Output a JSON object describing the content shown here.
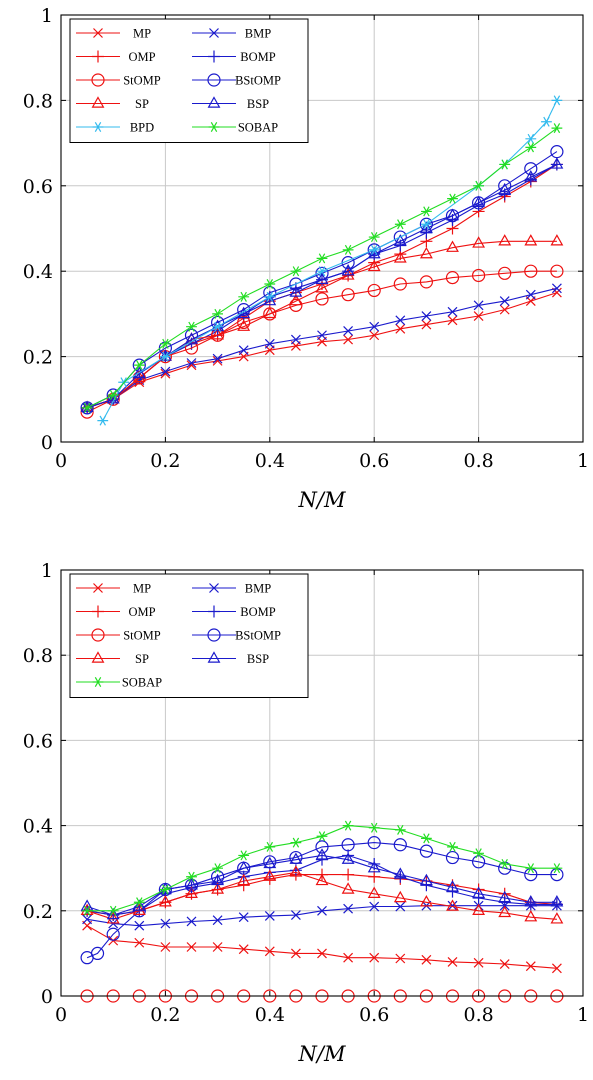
{
  "series_style": {
    "MP": {
      "color": "#ee1111",
      "marker": "x"
    },
    "OMP": {
      "color": "#ee1111",
      "marker": "+"
    },
    "StOMP": {
      "color": "#ee1111",
      "marker": "o"
    },
    "SP": {
      "color": "#ee1111",
      "marker": "tri"
    },
    "BMP": {
      "color": "#1a1acc",
      "marker": "x"
    },
    "BOMP": {
      "color": "#1a1acc",
      "marker": "+"
    },
    "BStOMP": {
      "color": "#1a1acc",
      "marker": "o"
    },
    "BSP": {
      "color": "#1a1acc",
      "marker": "tri"
    },
    "BPD": {
      "color": "#33bbee",
      "marker": "star"
    },
    "SOBAP": {
      "color": "#22dd22",
      "marker": "star"
    }
  },
  "chart_data": [
    {
      "type": "line",
      "title": "",
      "xlabel": "N/M",
      "ylabel": "",
      "xlim": [
        0,
        1
      ],
      "ylim": [
        0,
        1
      ],
      "xticks": [
        "0",
        "0.2",
        "0.4",
        "0.6",
        "0.8",
        "1"
      ],
      "yticks": [
        "0",
        "0.2",
        "0.4",
        "0.6",
        "0.8",
        "1"
      ],
      "grid": true,
      "legend_position": "top-left",
      "legend": [
        "MP",
        "BMP",
        "OMP",
        "BOMP",
        "StOMP",
        "BStOMP",
        "SP",
        "BSP",
        "BPD",
        "SOBAP"
      ],
      "x": [
        0.05,
        0.1,
        0.15,
        0.2,
        0.25,
        0.3,
        0.35,
        0.4,
        0.45,
        0.5,
        0.55,
        0.6,
        0.65,
        0.7,
        0.75,
        0.8,
        0.85,
        0.9,
        0.95
      ],
      "series": [
        {
          "name": "MP",
          "values": [
            0.08,
            0.1,
            0.14,
            0.16,
            0.18,
            0.19,
            0.2,
            0.215,
            0.225,
            0.235,
            0.24,
            0.25,
            0.265,
            0.275,
            0.285,
            0.295,
            0.31,
            0.33,
            0.35
          ]
        },
        {
          "name": "BMP",
          "values": [
            0.08,
            0.1,
            0.145,
            0.165,
            0.185,
            0.195,
            0.215,
            0.23,
            0.24,
            0.25,
            0.26,
            0.27,
            0.285,
            0.295,
            0.305,
            0.32,
            0.33,
            0.345,
            0.36
          ]
        },
        {
          "name": "OMP",
          "values": [
            0.08,
            0.1,
            0.15,
            0.2,
            0.23,
            0.25,
            0.29,
            0.33,
            0.35,
            0.37,
            0.39,
            0.42,
            0.44,
            0.47,
            0.5,
            0.54,
            0.575,
            0.61,
            0.65
          ]
        },
        {
          "name": "BOMP",
          "values": [
            0.08,
            0.1,
            0.15,
            0.2,
            0.23,
            0.26,
            0.3,
            0.34,
            0.36,
            0.38,
            0.4,
            0.44,
            0.46,
            0.49,
            0.52,
            0.555,
            0.58,
            0.615,
            0.65
          ]
        },
        {
          "name": "StOMP",
          "values": [
            0.07,
            0.1,
            0.15,
            0.2,
            0.22,
            0.25,
            0.28,
            0.3,
            0.32,
            0.335,
            0.345,
            0.355,
            0.37,
            0.375,
            0.385,
            0.39,
            0.395,
            0.4,
            0.4
          ]
        },
        {
          "name": "BStOMP",
          "values": [
            0.08,
            0.11,
            0.18,
            0.22,
            0.25,
            0.28,
            0.31,
            0.35,
            0.37,
            0.395,
            0.42,
            0.45,
            0.48,
            0.51,
            0.53,
            0.56,
            0.6,
            0.64,
            0.68
          ]
        },
        {
          "name": "SP",
          "values": [
            0.08,
            0.1,
            0.15,
            0.2,
            0.24,
            0.25,
            0.27,
            0.3,
            0.33,
            0.36,
            0.39,
            0.41,
            0.43,
            0.44,
            0.455,
            0.465,
            0.47,
            0.47,
            0.47
          ]
        },
        {
          "name": "BSP",
          "values": [
            0.08,
            0.1,
            0.16,
            0.2,
            0.24,
            0.27,
            0.3,
            0.33,
            0.35,
            0.38,
            0.4,
            0.44,
            0.47,
            0.5,
            0.53,
            0.56,
            0.59,
            0.62,
            0.65
          ]
        },
        {
          "name": "BPD",
          "x": [
            0.08,
            0.12,
            0.2,
            0.3,
            0.4,
            0.5,
            0.6,
            0.7,
            0.8,
            0.85,
            0.9,
            0.93,
            0.95
          ],
          "values": [
            0.05,
            0.14,
            0.2,
            0.27,
            0.34,
            0.4,
            0.45,
            0.51,
            0.6,
            0.65,
            0.71,
            0.75,
            0.8
          ]
        },
        {
          "name": "SOBAP",
          "values": [
            0.08,
            0.11,
            0.18,
            0.23,
            0.27,
            0.3,
            0.34,
            0.37,
            0.4,
            0.43,
            0.45,
            0.48,
            0.51,
            0.54,
            0.57,
            0.6,
            0.65,
            0.69,
            0.735
          ]
        }
      ]
    },
    {
      "type": "line",
      "title": "",
      "xlabel": "N/M",
      "ylabel": "",
      "xlim": [
        0,
        1
      ],
      "ylim": [
        0,
        1
      ],
      "xticks": [
        "0",
        "0.2",
        "0.4",
        "0.6",
        "0.8",
        "1"
      ],
      "yticks": [
        "0",
        "0.2",
        "0.4",
        "0.6",
        "0.8",
        "1"
      ],
      "grid": true,
      "legend_position": "top-left",
      "legend": [
        "MP",
        "BMP",
        "OMP",
        "BOMP",
        "StOMP",
        "BStOMP",
        "SP",
        "BSP",
        "SOBAP"
      ],
      "x": [
        0.05,
        0.1,
        0.15,
        0.2,
        0.25,
        0.3,
        0.35,
        0.4,
        0.45,
        0.5,
        0.55,
        0.6,
        0.65,
        0.7,
        0.75,
        0.8,
        0.85,
        0.9,
        0.95
      ],
      "series": [
        {
          "name": "MP",
          "values": [
            0.165,
            0.13,
            0.125,
            0.115,
            0.115,
            0.115,
            0.11,
            0.105,
            0.1,
            0.1,
            0.09,
            0.09,
            0.088,
            0.085,
            0.08,
            0.078,
            0.075,
            0.07,
            0.065
          ]
        },
        {
          "name": "BMP",
          "values": [
            0.18,
            0.17,
            0.165,
            0.17,
            0.175,
            0.178,
            0.185,
            0.188,
            0.19,
            0.2,
            0.205,
            0.21,
            0.21,
            0.212,
            0.212,
            0.212,
            0.212,
            0.212,
            0.212
          ]
        },
        {
          "name": "OMP",
          "values": [
            0.2,
            0.19,
            0.2,
            0.22,
            0.24,
            0.25,
            0.26,
            0.275,
            0.285,
            0.285,
            0.285,
            0.28,
            0.275,
            0.27,
            0.26,
            0.25,
            0.24,
            0.22,
            0.215
          ]
        },
        {
          "name": "BOMP",
          "values": [
            0.2,
            0.19,
            0.2,
            0.24,
            0.255,
            0.265,
            0.28,
            0.29,
            0.295,
            0.32,
            0.33,
            0.31,
            0.28,
            0.26,
            0.245,
            0.23,
            0.22,
            0.215,
            0.215
          ]
        },
        {
          "name": "StOMP",
          "values": [
            0,
            0,
            0,
            0,
            0,
            0,
            0,
            0,
            0,
            0,
            0,
            0,
            0,
            0,
            0,
            0,
            0,
            0,
            0
          ]
        },
        {
          "name": "BStOMP",
          "x": [
            0.05,
            0.07,
            0.1,
            0.15,
            0.2,
            0.25,
            0.3,
            0.35,
            0.4,
            0.45,
            0.5,
            0.55,
            0.6,
            0.65,
            0.7,
            0.75,
            0.8,
            0.85,
            0.9,
            0.95
          ],
          "values": [
            0.09,
            0.1,
            0.145,
            0.2,
            0.25,
            0.26,
            0.28,
            0.3,
            0.315,
            0.325,
            0.35,
            0.355,
            0.36,
            0.355,
            0.34,
            0.325,
            0.315,
            0.3,
            0.285,
            0.285
          ]
        },
        {
          "name": "SP",
          "values": [
            0.2,
            0.18,
            0.2,
            0.22,
            0.24,
            0.25,
            0.27,
            0.28,
            0.29,
            0.27,
            0.25,
            0.24,
            0.23,
            0.22,
            0.21,
            0.2,
            0.195,
            0.185,
            0.18
          ]
        },
        {
          "name": "BSP",
          "values": [
            0.21,
            0.19,
            0.21,
            0.25,
            0.26,
            0.27,
            0.3,
            0.31,
            0.32,
            0.33,
            0.32,
            0.3,
            0.285,
            0.27,
            0.255,
            0.24,
            0.23,
            0.22,
            0.22
          ]
        },
        {
          "name": "SOBAP",
          "values": [
            0.2,
            0.2,
            0.22,
            0.25,
            0.28,
            0.3,
            0.33,
            0.35,
            0.36,
            0.375,
            0.4,
            0.395,
            0.39,
            0.37,
            0.35,
            0.335,
            0.31,
            0.3,
            0.3
          ]
        }
      ]
    }
  ]
}
